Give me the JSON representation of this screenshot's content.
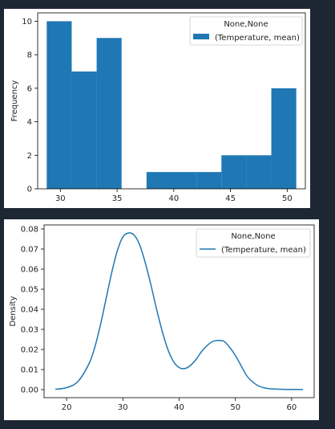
{
  "chart_data": [
    {
      "type": "bar",
      "subtype": "histogram",
      "ylabel": "Frequency",
      "xlabel": "",
      "legend": {
        "title": "None,None",
        "entries": [
          "(Temperature, mean)"
        ],
        "placement": "top-right"
      },
      "series_color": "#1f77b4",
      "bins": [
        {
          "x0": 28.8,
          "x1": 31.0,
          "count": 10
        },
        {
          "x0": 31.0,
          "x1": 33.2,
          "count": 7
        },
        {
          "x0": 33.2,
          "x1": 35.4,
          "count": 9
        },
        {
          "x0": 35.4,
          "x1": 37.6,
          "count": 0
        },
        {
          "x0": 37.6,
          "x1": 39.8,
          "count": 1
        },
        {
          "x0": 39.8,
          "x1": 42.0,
          "count": 1
        },
        {
          "x0": 42.0,
          "x1": 44.2,
          "count": 1
        },
        {
          "x0": 44.2,
          "x1": 46.4,
          "count": 2
        },
        {
          "x0": 46.4,
          "x1": 48.6,
          "count": 2
        },
        {
          "x0": 48.6,
          "x1": 50.8,
          "count": 6
        }
      ],
      "xlim": [
        28.0,
        51.6
      ],
      "ylim": [
        0,
        10.5
      ],
      "xticks": [
        30,
        35,
        40,
        45,
        50
      ],
      "yticks": [
        0,
        2,
        4,
        6,
        8,
        10
      ],
      "grid": false
    },
    {
      "type": "line",
      "subtype": "kde",
      "ylabel": "Density",
      "xlabel": "",
      "legend": {
        "title": "None,None",
        "entries": [
          "(Temperature, mean)"
        ],
        "placement": "top-right"
      },
      "series": [
        {
          "name": "(Temperature, mean)",
          "color": "#1f77b4",
          "x": [
            18,
            20,
            22,
            24,
            25,
            26,
            27,
            28,
            29,
            30,
            31,
            32,
            33,
            34,
            35,
            36,
            37,
            38,
            39,
            40,
            41,
            42,
            43,
            44,
            45,
            46,
            47,
            48,
            49,
            50,
            51,
            52,
            53,
            54,
            55,
            56,
            58,
            60,
            62
          ],
          "y": [
            0.0002,
            0.001,
            0.004,
            0.013,
            0.021,
            0.032,
            0.045,
            0.058,
            0.069,
            0.076,
            0.078,
            0.077,
            0.072,
            0.063,
            0.052,
            0.04,
            0.029,
            0.02,
            0.014,
            0.011,
            0.0105,
            0.012,
            0.015,
            0.019,
            0.022,
            0.024,
            0.0245,
            0.024,
            0.021,
            0.017,
            0.012,
            0.007,
            0.004,
            0.002,
            0.001,
            0.0005,
            0.0002,
            0.0001,
            5e-05
          ]
        }
      ],
      "xlim": [
        16.0,
        64.0
      ],
      "ylim": [
        -0.004,
        0.082
      ],
      "xticks": [
        20,
        30,
        40,
        50,
        60
      ],
      "yticks": [
        "0.00",
        "0.01",
        "0.02",
        "0.03",
        "0.04",
        "0.05",
        "0.06",
        "0.07",
        "0.08"
      ],
      "grid": false
    }
  ]
}
